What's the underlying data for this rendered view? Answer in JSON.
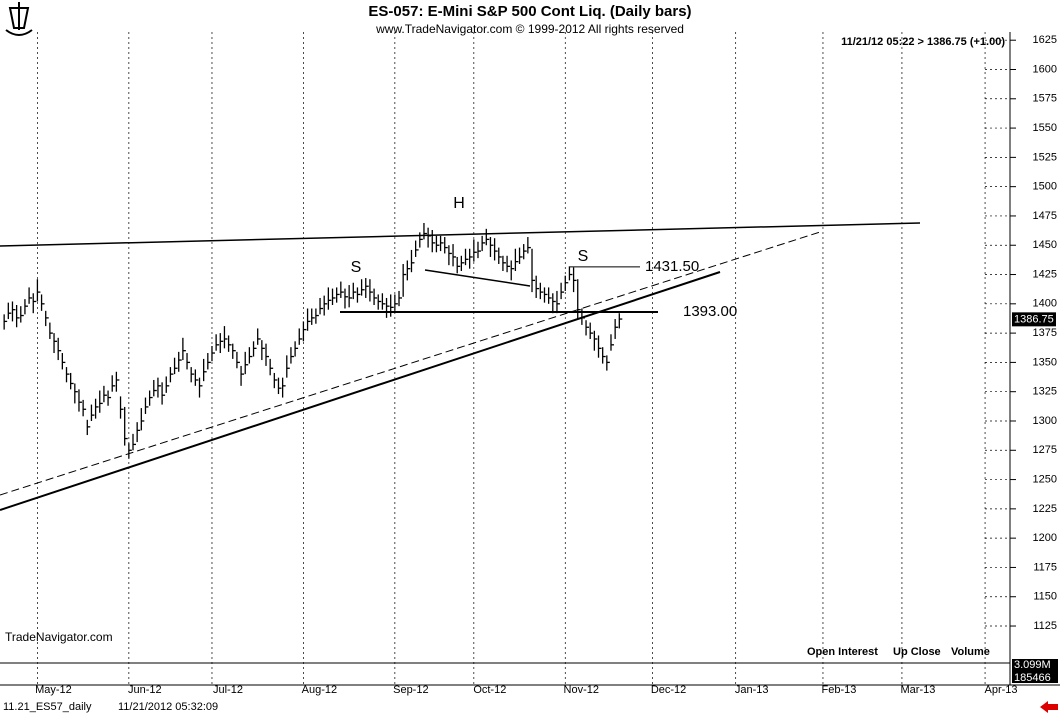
{
  "chart_data": {
    "type": "ohlc",
    "title": "ES-057:  E-Mini S&P 500 Cont Liq.  (Daily bars)",
    "subtitle": "www.TradeNavigator.com © 1999-2012 All rights reserved",
    "quote": "11/21/12 05:22 > 1386.75 (+1.00)",
    "last_price": 1386.75,
    "watermark": "TradeNavigator.com",
    "panel_labels": [
      "Open Interest",
      "Up Close",
      "Volume"
    ],
    "volume_labels": [
      "3.099M",
      "185466"
    ],
    "footer": [
      "11.21_ES57_daily",
      "11/21/2012 05:32:09"
    ],
    "pattern_labels": [
      "S",
      "H",
      "S"
    ],
    "levels": [
      {
        "value": 1431.5,
        "label": "1431.50"
      },
      {
        "value": 1393,
        "label": "1393.00"
      }
    ],
    "color": "#000000",
    "xlim": [
      1,
      244
    ],
    "xticks": [
      {
        "value": 10,
        "label": "May-12"
      },
      {
        "value": 32,
        "label": "Jun-12"
      },
      {
        "value": 52,
        "label": "Jul-12"
      },
      {
        "value": 74,
        "label": "Aug-12"
      },
      {
        "value": 96,
        "label": "Sep-12"
      },
      {
        "value": 115,
        "label": "Oct-12"
      },
      {
        "value": 137,
        "label": "Nov-12"
      },
      {
        "value": 158,
        "label": "Dec-12"
      },
      {
        "value": 178,
        "label": "Jan-13"
      },
      {
        "value": 199,
        "label": "Feb-13"
      },
      {
        "value": 218,
        "label": "Mar-13"
      },
      {
        "value": 238,
        "label": "Apr-13"
      }
    ],
    "ylim": [
      1096,
      1632
    ],
    "yticks": [
      1125,
      1150,
      1175,
      1200,
      1225,
      1250,
      1275,
      1300,
      1325,
      1350,
      1375,
      1400,
      1425,
      1450,
      1475,
      1500,
      1525,
      1550,
      1575,
      1600,
      1625
    ],
    "x": [
      2,
      3,
      4,
      5,
      6,
      7,
      8,
      9,
      10,
      11,
      12,
      13,
      14,
      15,
      16,
      17,
      18,
      19,
      20,
      21,
      22,
      23,
      24,
      25,
      26,
      27,
      28,
      29,
      30,
      31,
      32,
      33,
      34,
      35,
      36,
      37,
      38,
      39,
      40,
      41,
      42,
      43,
      44,
      45,
      46,
      47,
      48,
      49,
      50,
      51,
      52,
      53,
      54,
      55,
      56,
      57,
      58,
      59,
      60,
      61,
      62,
      63,
      64,
      65,
      66,
      67,
      68,
      69,
      70,
      71,
      72,
      73,
      74,
      75,
      76,
      77,
      78,
      79,
      80,
      81,
      82,
      83,
      84,
      85,
      86,
      87,
      88,
      89,
      90,
      91,
      92,
      93,
      94,
      95,
      96,
      97,
      98,
      99,
      100,
      101,
      102,
      103,
      104,
      105,
      106,
      107,
      108,
      109,
      110,
      111,
      112,
      113,
      114,
      115,
      116,
      117,
      118,
      119,
      120,
      121,
      122,
      123,
      124,
      125,
      126,
      127,
      128,
      129,
      130,
      131,
      132,
      133,
      134,
      135,
      136,
      137,
      138,
      139,
      140,
      141,
      142,
      143,
      144,
      145,
      146,
      147,
      148,
      149,
      150
    ],
    "high": [
      1391,
      1401,
      1402,
      1399,
      1398,
      1404,
      1414,
      1409,
      1421,
      1408,
      1394,
      1384,
      1375,
      1371,
      1358,
      1346,
      1341,
      1332,
      1327,
      1318,
      1301,
      1314,
      1319,
      1326,
      1330,
      1326,
      1339,
      1342,
      1321,
      1312,
      1281,
      1289,
      1299,
      1311,
      1320,
      1326,
      1335,
      1337,
      1333,
      1338,
      1346,
      1354,
      1359,
      1371,
      1358,
      1346,
      1344,
      1337,
      1353,
      1358,
      1364,
      1374,
      1375,
      1381,
      1373,
      1366,
      1359,
      1347,
      1359,
      1363,
      1368,
      1379,
      1369,
      1366,
      1353,
      1341,
      1337,
      1337,
      1356,
      1363,
      1368,
      1379,
      1385,
      1396,
      1396,
      1396,
      1405,
      1407,
      1414,
      1413,
      1414,
      1419,
      1413,
      1416,
      1418,
      1414,
      1421,
      1422,
      1421,
      1413,
      1408,
      1409,
      1405,
      1408,
      1408,
      1411,
      1434,
      1437,
      1446,
      1454,
      1461,
      1469,
      1465,
      1463,
      1458,
      1458,
      1457,
      1450,
      1451,
      1440,
      1441,
      1447,
      1447,
      1455,
      1453,
      1458,
      1464,
      1457,
      1456,
      1448,
      1441,
      1441,
      1437,
      1447,
      1448,
      1451,
      1457,
      1447,
      1424,
      1418,
      1414,
      1414,
      1409,
      1411,
      1418,
      1424,
      1432,
      1431,
      1421,
      1396,
      1386,
      1384,
      1377,
      1373,
      1363,
      1356,
      1374,
      1387,
      1392
    ],
    "low": [
      1378,
      1387,
      1385,
      1380,
      1384,
      1391,
      1400,
      1392,
      1402,
      1394,
      1381,
      1370,
      1358,
      1352,
      1344,
      1333,
      1327,
      1315,
      1308,
      1304,
      1288,
      1300,
      1302,
      1307,
      1316,
      1313,
      1325,
      1325,
      1302,
      1279,
      1268,
      1275,
      1282,
      1292,
      1306,
      1313,
      1321,
      1320,
      1314,
      1324,
      1333,
      1340,
      1342,
      1352,
      1344,
      1333,
      1330,
      1320,
      1334,
      1344,
      1351,
      1360,
      1358,
      1362,
      1359,
      1353,
      1345,
      1330,
      1340,
      1349,
      1355,
      1365,
      1352,
      1347,
      1339,
      1328,
      1323,
      1320,
      1337,
      1349,
      1355,
      1365,
      1368,
      1377,
      1382,
      1383,
      1391,
      1390,
      1395,
      1399,
      1401,
      1405,
      1396,
      1397,
      1404,
      1401,
      1407,
      1405,
      1402,
      1399,
      1395,
      1395,
      1388,
      1389,
      1394,
      1398,
      1406,
      1420,
      1427,
      1440,
      1448,
      1455,
      1448,
      1444,
      1444,
      1445,
      1443,
      1433,
      1432,
      1426,
      1428,
      1433,
      1430,
      1436,
      1439,
      1445,
      1450,
      1440,
      1437,
      1434,
      1428,
      1427,
      1420,
      1428,
      1434,
      1438,
      1443,
      1410,
      1405,
      1404,
      1401,
      1400,
      1392,
      1392,
      1404,
      1411,
      1420,
      1410,
      1387,
      1382,
      1373,
      1370,
      1360,
      1354,
      1349,
      1343,
      1360,
      1370,
      1379
    ],
    "close": [
      1385,
      1392,
      1395,
      1388,
      1390,
      1398,
      1405,
      1402,
      1410,
      1400,
      1388,
      1375,
      1368,
      1360,
      1350,
      1340,
      1332,
      1325,
      1316,
      1310,
      1295,
      1305,
      1312,
      1315,
      1322,
      1320,
      1330,
      1335,
      1310,
      1285,
      1275,
      1280,
      1292,
      1300,
      1312,
      1320,
      1326,
      1330,
      1322,
      1330,
      1340,
      1345,
      1352,
      1360,
      1350,
      1340,
      1335,
      1330,
      1342,
      1350,
      1358,
      1365,
      1368,
      1370,
      1365,
      1360,
      1350,
      1340,
      1348,
      1355,
      1362,
      1370,
      1362,
      1355,
      1345,
      1335,
      1328,
      1330,
      1345,
      1355,
      1362,
      1370,
      1378,
      1385,
      1388,
      1390,
      1396,
      1400,
      1403,
      1405,
      1408,
      1410,
      1406,
      1405,
      1410,
      1408,
      1412,
      1415,
      1410,
      1405,
      1402,
      1400,
      1398,
      1397,
      1400,
      1405,
      1425,
      1430,
      1435,
      1446,
      1455,
      1460,
      1458,
      1452,
      1450,
      1452,
      1448,
      1443,
      1440,
      1432,
      1435,
      1438,
      1440,
      1444,
      1445,
      1452,
      1455,
      1450,
      1445,
      1440,
      1435,
      1432,
      1430,
      1436,
      1440,
      1445,
      1448,
      1420,
      1413,
      1410,
      1408,
      1405,
      1402,
      1400,
      1410,
      1418,
      1425,
      1420,
      1395,
      1388,
      1380,
      1375,
      1370,
      1362,
      1355,
      1350,
      1365,
      1380,
      1387
    ]
  }
}
